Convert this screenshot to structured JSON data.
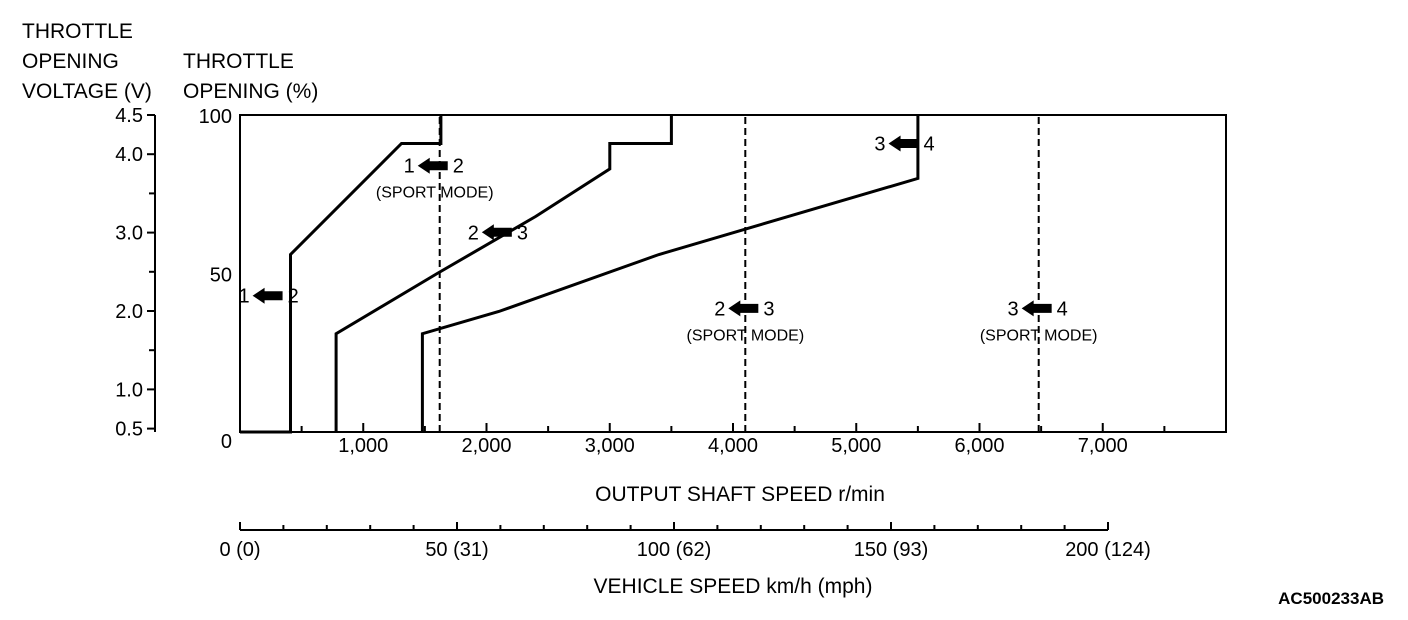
{
  "chart_data": {
    "type": "line",
    "labels": {
      "left_axis_title": [
        "THROTTLE",
        "OPENING",
        "VOLTAGE (V)"
      ],
      "right_axis_title": [
        "THROTTLE",
        "OPENING (%)"
      ],
      "x_axis_title": "OUTPUT SHAFT SPEED r/min",
      "speed_axis_title": "VEHICLE SPEED km/h (mph)",
      "figure_code": "AC500233AB"
    },
    "x_axis": {
      "min": 0,
      "max": 8000,
      "ticks": [
        "1,000",
        "2,000",
        "3,000",
        "4,000",
        "5,000",
        "6,000",
        "7,000"
      ],
      "tick_values": [
        1000,
        2000,
        3000,
        4000,
        5000,
        6000,
        7000
      ],
      "minor_ticks": [
        500,
        1500,
        2500,
        3500,
        4500,
        5500,
        6500,
        7500
      ]
    },
    "throttle_axis": {
      "min": 0,
      "max": 100,
      "ticks": [
        "0",
        "50",
        "100"
      ],
      "tick_values": [
        0,
        50,
        100
      ]
    },
    "voltage_axis": {
      "ticks": [
        "0.5",
        "1.0",
        "2.0",
        "3.0",
        "4.0",
        "4.5"
      ],
      "tick_values": [
        0.5,
        1.0,
        2.0,
        3.0,
        4.0,
        4.5
      ],
      "minor_ticks": [
        1.5,
        2.5,
        3.5
      ]
    },
    "speed_axis": {
      "min": 0,
      "max": 200,
      "ticks": [
        "0 (0)",
        "50 (31)",
        "100 (62)",
        "150 (93)",
        "200 (124)"
      ],
      "tick_values": [
        0,
        50,
        100,
        150,
        200
      ]
    },
    "series": [
      {
        "label_from": "1",
        "label_to": "2",
        "style": "solid",
        "points": [
          [
            0,
            0
          ],
          [
            410,
            0
          ],
          [
            410,
            56
          ],
          [
            1310,
            91
          ],
          [
            1630,
            91
          ],
          [
            1630,
            100
          ]
        ]
      },
      {
        "label_from": "2",
        "label_to": "3",
        "style": "solid",
        "points": [
          [
            780,
            0
          ],
          [
            780,
            31
          ],
          [
            1600,
            50
          ],
          [
            2400,
            68
          ],
          [
            3000,
            83
          ],
          [
            3000,
            91
          ],
          [
            3500,
            91
          ],
          [
            3500,
            100
          ]
        ]
      },
      {
        "label_from": "3",
        "label_to": "4",
        "style": "solid",
        "points": [
          [
            1480,
            0
          ],
          [
            1480,
            31
          ],
          [
            2100,
            38
          ],
          [
            3400,
            56
          ],
          [
            5500,
            80
          ],
          [
            5500,
            100
          ]
        ]
      },
      {
        "label_from": "1",
        "label_to": "2",
        "note": "(SPORT MODE)",
        "style": "dashed",
        "points": [
          [
            1620,
            0
          ],
          [
            1620,
            100
          ]
        ]
      },
      {
        "label_from": "2",
        "label_to": "3",
        "note": "(SPORT MODE)",
        "style": "dashed",
        "points": [
          [
            4100,
            0
          ],
          [
            4100,
            100
          ]
        ]
      },
      {
        "label_from": "3",
        "label_to": "4",
        "note": "(SPORT MODE)",
        "style": "dashed",
        "points": [
          [
            6480,
            0
          ],
          [
            6480,
            100
          ]
        ]
      }
    ],
    "annotations": [
      {
        "from": "1",
        "to": "2",
        "note": "",
        "x": 240,
        "y": 43
      },
      {
        "from": "2",
        "to": "3",
        "note": "",
        "x": 2100,
        "y": 63
      },
      {
        "from": "3",
        "to": "4",
        "note": "",
        "x": 5400,
        "y": 91
      },
      {
        "from": "1",
        "to": "2",
        "note": "(SPORT MODE)",
        "x": 1580,
        "y": 84
      },
      {
        "from": "2",
        "to": "3",
        "note": "(SPORT MODE)",
        "x": 4100,
        "y": 39
      },
      {
        "from": "3",
        "to": "4",
        "note": "(SPORT MODE)",
        "x": 6480,
        "y": 39
      }
    ]
  }
}
